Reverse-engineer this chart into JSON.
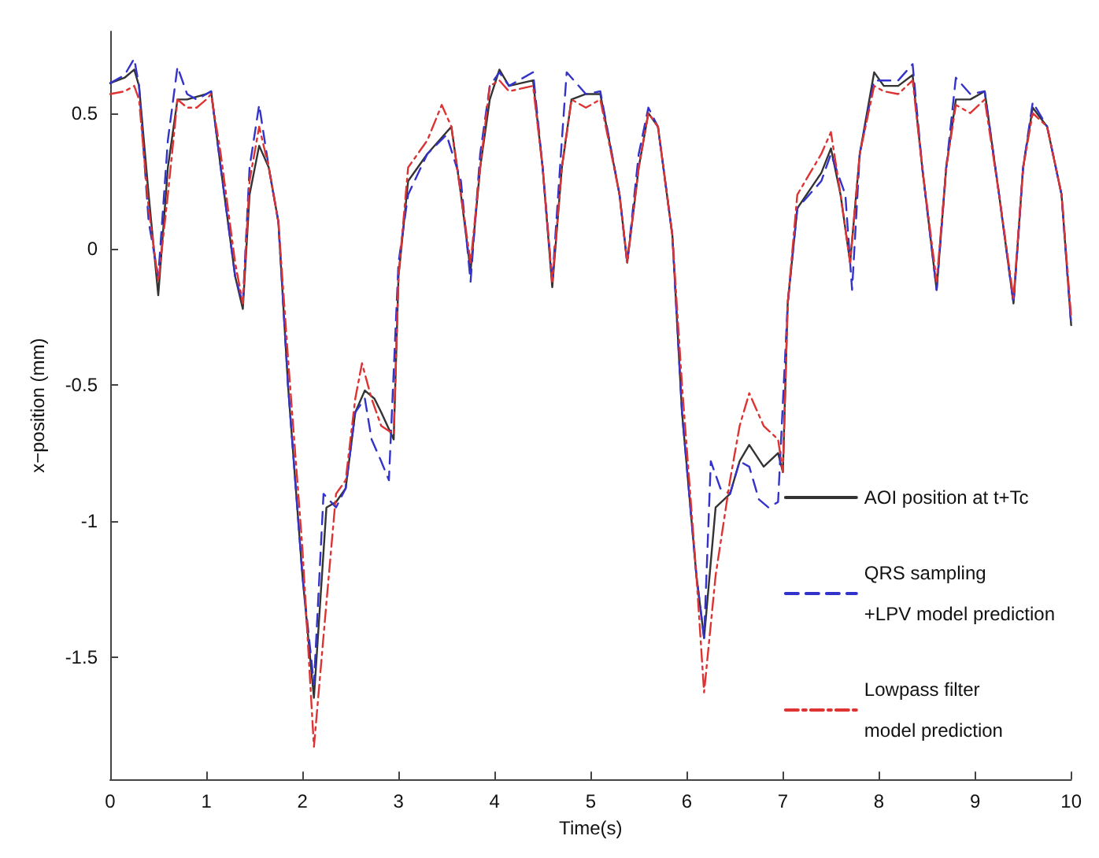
{
  "chart_data": {
    "type": "line",
    "xlabel": "Time(s)",
    "ylabel": "x−position (mm)",
    "xlim": [
      0,
      10
    ],
    "ylim": [
      -1.95,
      0.8
    ],
    "xticks": [
      0,
      1,
      2,
      3,
      4,
      5,
      6,
      7,
      8,
      9,
      10
    ],
    "yticks": [
      -1.5,
      -1,
      -0.5,
      0,
      0.5
    ],
    "grid": false,
    "legend": "bottom right",
    "marker": "none",
    "series": [
      {
        "name": "AOI position at t+Tc",
        "color": "#333333",
        "line_style": "solid",
        "x": [
          0,
          0.15,
          0.25,
          0.3,
          0.4,
          0.5,
          0.6,
          0.7,
          0.8,
          0.9,
          1.0,
          1.05,
          1.15,
          1.3,
          1.38,
          1.45,
          1.55,
          1.65,
          1.75,
          1.85,
          2.0,
          2.12,
          2.25,
          2.35,
          2.45,
          2.55,
          2.65,
          2.75,
          2.82,
          2.95,
          3.0,
          3.1,
          3.3,
          3.55,
          3.65,
          3.75,
          3.85,
          3.95,
          4.05,
          4.15,
          4.4,
          4.5,
          4.6,
          4.7,
          4.8,
          4.95,
          5.1,
          5.3,
          5.38,
          5.5,
          5.6,
          5.7,
          5.85,
          5.95,
          6.1,
          6.18,
          6.3,
          6.45,
          6.55,
          6.65,
          6.8,
          6.95,
          7.0,
          7.05,
          7.15,
          7.4,
          7.5,
          7.6,
          7.7,
          7.8,
          7.95,
          8.05,
          8.2,
          8.35,
          8.45,
          8.6,
          8.7,
          8.8,
          8.95,
          9.1,
          9.25,
          9.4,
          9.5,
          9.6,
          9.75,
          9.9,
          10
        ],
        "values": [
          0.61,
          0.63,
          0.66,
          0.6,
          0.2,
          -0.17,
          0.3,
          0.55,
          0.55,
          0.56,
          0.57,
          0.58,
          0.3,
          -0.1,
          -0.22,
          0.2,
          0.38,
          0.3,
          0.1,
          -0.5,
          -1.2,
          -1.65,
          -0.95,
          -0.93,
          -0.88,
          -0.6,
          -0.52,
          -0.55,
          -0.6,
          -0.7,
          -0.1,
          0.25,
          0.35,
          0.45,
          0.2,
          -0.08,
          0.3,
          0.55,
          0.66,
          0.6,
          0.62,
          0.3,
          -0.14,
          0.3,
          0.55,
          0.57,
          0.57,
          0.2,
          -0.05,
          0.3,
          0.5,
          0.45,
          0.05,
          -0.6,
          -1.2,
          -1.43,
          -0.95,
          -0.9,
          -0.78,
          -0.72,
          -0.8,
          -0.75,
          -0.82,
          -0.2,
          0.15,
          0.28,
          0.37,
          0.2,
          -0.05,
          0.35,
          0.65,
          0.6,
          0.6,
          0.64,
          0.3,
          -0.15,
          0.3,
          0.55,
          0.55,
          0.58,
          0.2,
          -0.2,
          0.3,
          0.52,
          0.45,
          0.2,
          -0.28
        ]
      },
      {
        "name": "QRS sampling\n+LPV model prediction",
        "color": "#3333cc",
        "line_style": "dashed",
        "x": [
          0,
          0.15,
          0.25,
          0.3,
          0.4,
          0.5,
          0.6,
          0.7,
          0.8,
          0.9,
          1.0,
          1.05,
          1.15,
          1.3,
          1.38,
          1.45,
          1.55,
          1.65,
          1.75,
          1.85,
          2.0,
          2.12,
          2.22,
          2.35,
          2.45,
          2.55,
          2.65,
          2.72,
          2.82,
          2.9,
          3.0,
          3.1,
          3.3,
          3.5,
          3.65,
          3.75,
          3.85,
          3.95,
          4.05,
          4.15,
          4.4,
          4.5,
          4.6,
          4.7,
          4.75,
          4.95,
          5.1,
          5.3,
          5.38,
          5.5,
          5.6,
          5.7,
          5.85,
          5.95,
          6.1,
          6.18,
          6.25,
          6.35,
          6.45,
          6.55,
          6.65,
          6.75,
          6.85,
          6.95,
          7.05,
          7.15,
          7.4,
          7.5,
          7.65,
          7.72,
          7.8,
          7.95,
          8.05,
          8.2,
          8.35,
          8.45,
          8.6,
          8.7,
          8.8,
          8.95,
          9.1,
          9.25,
          9.4,
          9.5,
          9.6,
          9.75,
          9.9,
          10
        ],
        "values": [
          0.61,
          0.64,
          0.7,
          0.6,
          0.1,
          -0.1,
          0.4,
          0.67,
          0.57,
          0.55,
          0.57,
          0.58,
          0.3,
          -0.1,
          -0.2,
          0.3,
          0.53,
          0.3,
          0.1,
          -0.5,
          -1.2,
          -1.6,
          -0.9,
          -0.95,
          -0.88,
          -0.6,
          -0.55,
          -0.7,
          -0.78,
          -0.85,
          -0.05,
          0.2,
          0.35,
          0.42,
          0.25,
          -0.12,
          0.35,
          0.6,
          0.65,
          0.6,
          0.65,
          0.3,
          -0.12,
          0.4,
          0.65,
          0.57,
          0.58,
          0.2,
          -0.05,
          0.35,
          0.52,
          0.45,
          0.05,
          -0.6,
          -1.2,
          -1.43,
          -0.78,
          -0.88,
          -0.9,
          -0.78,
          -0.8,
          -0.92,
          -0.95,
          -0.93,
          -0.2,
          0.15,
          0.25,
          0.35,
          0.2,
          -0.15,
          0.35,
          0.62,
          0.62,
          0.62,
          0.68,
          0.3,
          -0.15,
          0.3,
          0.63,
          0.57,
          0.58,
          0.2,
          -0.2,
          0.3,
          0.54,
          0.45,
          0.2,
          -0.28
        ]
      },
      {
        "name": "Lowpass filter\nmodel prediction",
        "color": "#dd3333",
        "line_style": "dashdot",
        "x": [
          0,
          0.15,
          0.25,
          0.3,
          0.4,
          0.5,
          0.6,
          0.7,
          0.8,
          0.9,
          1.0,
          1.05,
          1.15,
          1.3,
          1.38,
          1.45,
          1.55,
          1.65,
          1.75,
          1.85,
          2.0,
          2.12,
          2.25,
          2.35,
          2.45,
          2.55,
          2.62,
          2.72,
          2.82,
          2.95,
          3.0,
          3.1,
          3.3,
          3.45,
          3.55,
          3.65,
          3.75,
          3.85,
          3.95,
          4.05,
          4.15,
          4.4,
          4.5,
          4.6,
          4.7,
          4.8,
          4.95,
          5.1,
          5.3,
          5.38,
          5.5,
          5.6,
          5.7,
          5.85,
          5.95,
          6.1,
          6.18,
          6.3,
          6.45,
          6.55,
          6.65,
          6.8,
          6.95,
          7.0,
          7.05,
          7.15,
          7.4,
          7.5,
          7.6,
          7.7,
          7.8,
          7.95,
          8.05,
          8.2,
          8.35,
          8.45,
          8.6,
          8.7,
          8.8,
          8.95,
          9.1,
          9.25,
          9.4,
          9.5,
          9.6,
          9.75,
          9.9,
          10
        ],
        "values": [
          0.57,
          0.58,
          0.6,
          0.55,
          0.15,
          -0.12,
          0.2,
          0.55,
          0.52,
          0.52,
          0.55,
          0.57,
          0.35,
          -0.05,
          -0.2,
          0.25,
          0.45,
          0.3,
          0.1,
          -0.4,
          -1.1,
          -1.83,
          -1.3,
          -0.9,
          -0.85,
          -0.55,
          -0.42,
          -0.55,
          -0.65,
          -0.68,
          -0.1,
          0.3,
          0.4,
          0.53,
          0.45,
          0.2,
          -0.05,
          0.3,
          0.6,
          0.62,
          0.58,
          0.6,
          0.3,
          -0.12,
          0.3,
          0.55,
          0.52,
          0.55,
          0.2,
          -0.05,
          0.3,
          0.5,
          0.45,
          0.05,
          -0.5,
          -1.2,
          -1.63,
          -1.2,
          -0.85,
          -0.65,
          -0.53,
          -0.65,
          -0.7,
          -0.82,
          -0.2,
          0.2,
          0.35,
          0.43,
          0.2,
          -0.05,
          0.35,
          0.6,
          0.58,
          0.57,
          0.62,
          0.3,
          -0.12,
          0.3,
          0.53,
          0.5,
          0.55,
          0.2,
          -0.18,
          0.3,
          0.5,
          0.45,
          0.2,
          -0.25
        ]
      }
    ]
  }
}
